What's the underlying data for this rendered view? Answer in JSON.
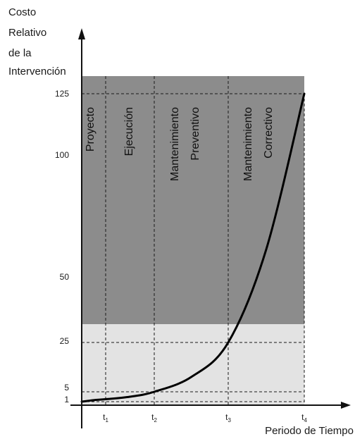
{
  "chart_data": {
    "type": "line",
    "ylabel_lines": [
      "Costo",
      "Relativo",
      "de la",
      "Intervención"
    ],
    "xlabel": "Periodo de Tiempo",
    "yticks": [
      1,
      5,
      25,
      50,
      100,
      125
    ],
    "xticks": [
      {
        "main": "t",
        "sub": "1"
      },
      {
        "main": "t",
        "sub": "2"
      },
      {
        "main": "t",
        "sub": "3"
      },
      {
        "main": "t",
        "sub": "4"
      }
    ],
    "phases": [
      {
        "lines": [
          "Proyecto"
        ]
      },
      {
        "lines": [
          "Ejecución"
        ]
      },
      {
        "lines": [
          "Mantenimiento",
          "Preventivo"
        ]
      },
      {
        "lines": [
          "Mantenimiento",
          "Correctivo"
        ]
      }
    ],
    "series": [
      {
        "x": [
          0,
          0.5,
          1,
          1.5,
          2,
          2.5,
          3,
          3.5,
          4
        ],
        "y": [
          1,
          1.6,
          2,
          3,
          5,
          11,
          25,
          62,
          125
        ]
      }
    ],
    "xlim": [
      0,
      4
    ],
    "ylim": [
      0,
      135
    ],
    "colors": {
      "dark_band": "#8c8c8c",
      "light_band": "#e3e3e3",
      "curve": "#000000",
      "axis": "#111111"
    }
  }
}
